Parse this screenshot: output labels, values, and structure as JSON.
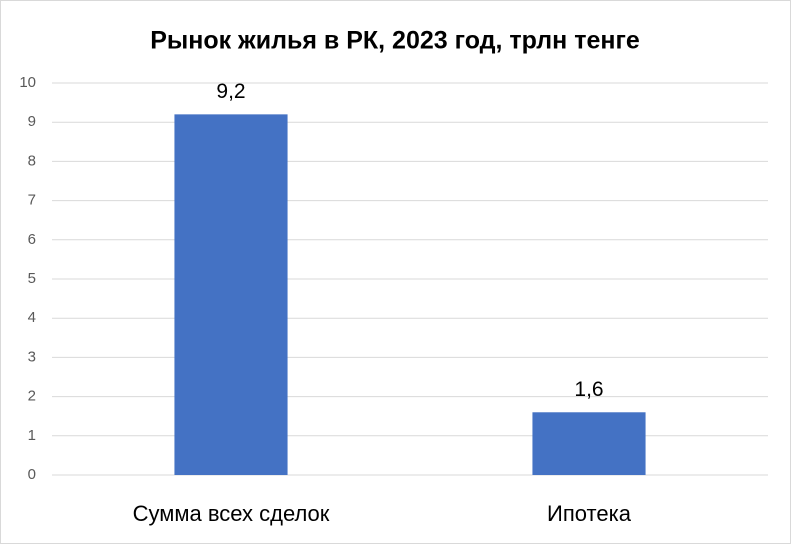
{
  "chart_data": {
    "type": "bar",
    "title": "Рынок жилья в РК, 2023 год, трлн тенге",
    "categories": [
      "Сумма всех сделок",
      "Ипотека"
    ],
    "values": [
      9.2,
      1.6
    ],
    "value_labels": [
      "9,2",
      "1,6"
    ],
    "color": "#4472c4",
    "ylim": [
      0,
      10
    ],
    "yticks": [
      0,
      1,
      2,
      3,
      4,
      5,
      6,
      7,
      8,
      9,
      10
    ],
    "grid": true
  }
}
